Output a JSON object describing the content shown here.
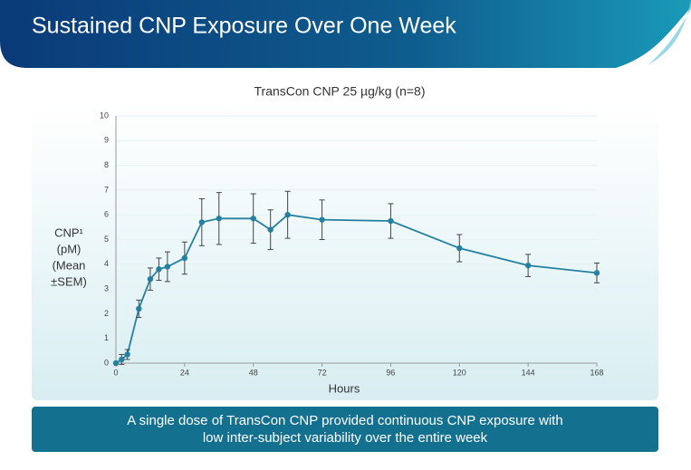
{
  "header": {
    "title": "Sustained CNP Exposure Over One Week"
  },
  "chart_data": {
    "type": "line",
    "title": "TransCon CNP 25 µg/kg (n=8)",
    "xlabel": "Hours",
    "ylabel": [
      "CNP¹",
      "(pM)",
      "(Mean",
      "±SEM)"
    ],
    "x": [
      0,
      2,
      4,
      8,
      12,
      15,
      18,
      24,
      30,
      36,
      48,
      54,
      60,
      72,
      96,
      120,
      144,
      168
    ],
    "series": [
      {
        "color": "#25809f",
        "values": [
          0,
          0.15,
          0.35,
          2.2,
          3.4,
          3.8,
          3.9,
          4.25,
          5.7,
          5.85,
          5.85,
          5.4,
          6.0,
          5.8,
          5.75,
          4.65,
          3.95,
          3.65
        ],
        "errors": [
          0,
          0.2,
          0.2,
          0.35,
          0.45,
          0.45,
          0.6,
          0.65,
          0.95,
          1.05,
          1.0,
          0.8,
          0.95,
          0.8,
          0.7,
          0.55,
          0.45,
          0.4
        ]
      }
    ],
    "xlim": [
      0,
      168
    ],
    "xticks": [
      0,
      24,
      48,
      72,
      96,
      120,
      144,
      168
    ],
    "ylim": [
      0,
      10
    ],
    "yticks": [
      0,
      1,
      2,
      3,
      4,
      5,
      6,
      7,
      8,
      9,
      10
    ],
    "grid": true
  },
  "note": [
    "A single dose of TransCon CNP provided continuous CNP exposure with",
    "low inter-subject variability over the entire week"
  ]
}
